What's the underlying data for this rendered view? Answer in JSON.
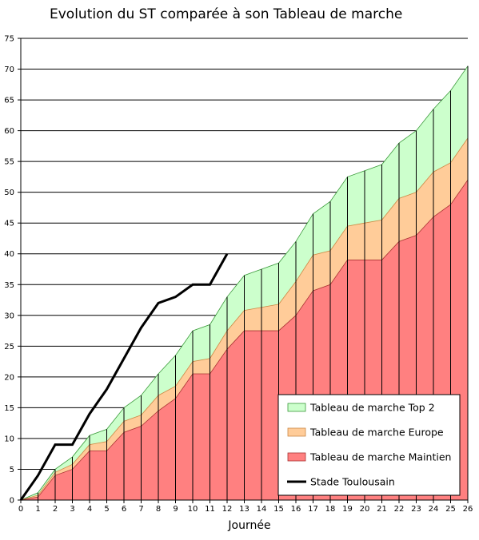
{
  "chart_data": {
    "type": "area",
    "title": "Evolution du ST comparée à son Tableau de marche",
    "xlabel": "Journée",
    "ylabel": "",
    "xlim": [
      0,
      26
    ],
    "ylim": [
      0,
      75
    ],
    "x_ticks": [
      0,
      1,
      2,
      3,
      4,
      5,
      6,
      7,
      8,
      9,
      10,
      11,
      12,
      13,
      14,
      15,
      16,
      17,
      18,
      19,
      20,
      21,
      22,
      23,
      24,
      25,
      26
    ],
    "y_ticks": [
      0,
      5,
      10,
      15,
      20,
      25,
      30,
      35,
      40,
      45,
      50,
      55,
      60,
      65,
      70,
      75
    ],
    "grid": "horizontal",
    "legend_position": "bottom-right",
    "series": [
      {
        "name": "Tableau de marche Maintien",
        "kind": "area",
        "color": "#ff8080",
        "x": [
          0,
          1,
          2,
          3,
          4,
          5,
          6,
          7,
          8,
          9,
          10,
          11,
          12,
          13,
          14,
          15,
          16,
          17,
          18,
          19,
          20,
          21,
          22,
          23,
          24,
          25,
          26
        ],
        "values": [
          0,
          0.5,
          4,
          5,
          8,
          8,
          11,
          12,
          14.5,
          16.5,
          20.5,
          20.5,
          24.5,
          27.5,
          27.5,
          27.5,
          30,
          34,
          35,
          39,
          39,
          39,
          42,
          43,
          46,
          48,
          52
        ]
      },
      {
        "name": "Tableau de marche Europe",
        "kind": "area",
        "color": "#ffcc99",
        "x": [
          0,
          1,
          2,
          3,
          4,
          5,
          6,
          7,
          8,
          9,
          10,
          11,
          12,
          13,
          14,
          15,
          16,
          17,
          18,
          19,
          20,
          21,
          22,
          23,
          24,
          25,
          26
        ],
        "values": [
          0,
          0.8,
          4.5,
          5.8,
          9,
          9.5,
          12.8,
          13.8,
          17,
          18.5,
          22.5,
          23,
          27.5,
          30.8,
          31.3,
          31.8,
          35.5,
          39.8,
          40.5,
          44.5,
          45,
          45.5,
          49,
          50,
          53.3,
          54.8,
          58.8
        ]
      },
      {
        "name": "Tableau de marche Top 2",
        "kind": "area",
        "color": "#ccffcc",
        "x": [
          0,
          1,
          2,
          3,
          4,
          5,
          6,
          7,
          8,
          9,
          10,
          11,
          12,
          13,
          14,
          15,
          16,
          17,
          18,
          19,
          20,
          21,
          22,
          23,
          24,
          25,
          26
        ],
        "values": [
          0,
          1.2,
          5,
          7,
          10.5,
          11.5,
          15,
          17,
          20.5,
          23.5,
          27.5,
          28.5,
          33,
          36.5,
          37.5,
          38.5,
          42,
          46.5,
          48.5,
          52.5,
          53.5,
          54.5,
          58,
          60,
          63.5,
          66.5,
          70.5
        ]
      },
      {
        "name": "Stade Toulousain",
        "kind": "line",
        "color": "#000000",
        "x": [
          0,
          1,
          2,
          3,
          4,
          5,
          6,
          7,
          8,
          9,
          10,
          11,
          12
        ],
        "values": [
          0,
          4,
          9,
          9,
          14,
          18,
          23,
          28,
          32,
          33,
          35,
          35,
          40
        ]
      }
    ]
  }
}
